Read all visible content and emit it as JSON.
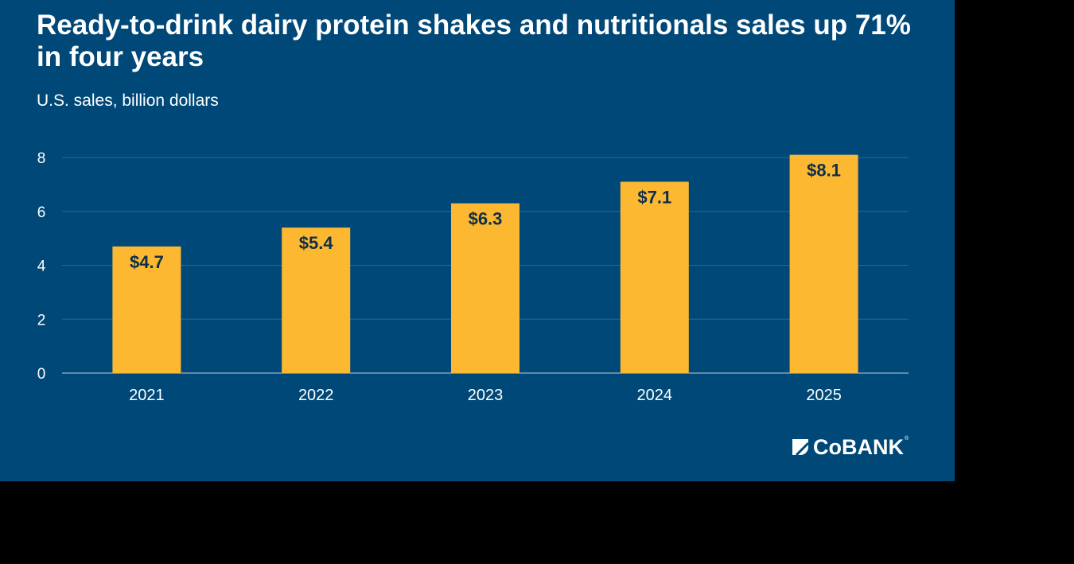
{
  "colors": {
    "background": "#004878",
    "bar": "#fcb830",
    "grid": "#2d6690",
    "axis_line": "#7f9fbb",
    "label_on_bar": "#0f2e4c",
    "text": "#ffffff"
  },
  "header": {
    "title": "Ready-to-drink dairy protein shakes and nutritionals sales up 71% in four years",
    "subtitle": "U.S. sales, billion dollars"
  },
  "chart_data": {
    "type": "bar",
    "title": "Ready-to-drink dairy protein shakes and nutritionals sales up 71% in four years",
    "subtitle": "U.S. sales, billion dollars",
    "categories": [
      "2021",
      "2022",
      "2023",
      "2024",
      "2025"
    ],
    "values": [
      4.7,
      5.4,
      6.3,
      7.1,
      8.1
    ],
    "data_labels": [
      "$4.7",
      "$5.4",
      "$6.3",
      "$7.1",
      "$8.1"
    ],
    "y_ticks": [
      0,
      2,
      4,
      6,
      8
    ],
    "ylim": [
      0,
      8
    ],
    "grid": true,
    "legend": "none"
  },
  "logo": {
    "name": "cobank-logo-icon",
    "text": "CoBANK",
    "mark": "®"
  }
}
